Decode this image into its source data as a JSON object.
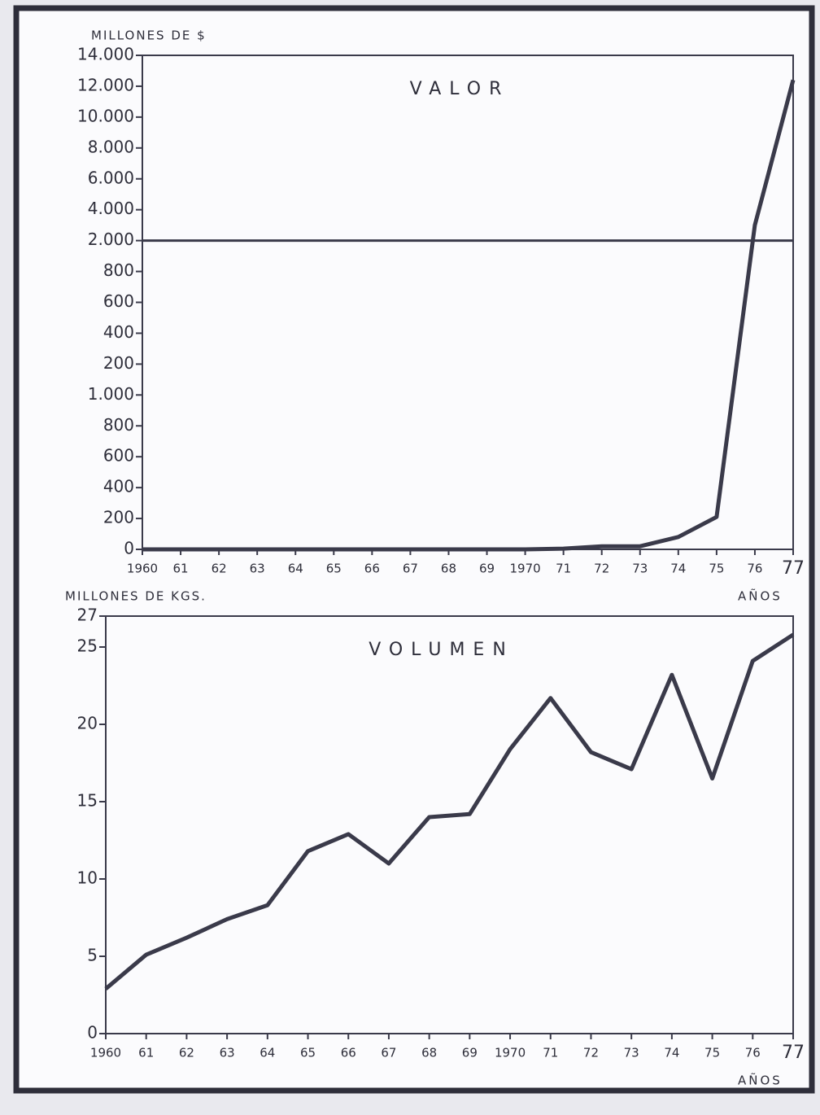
{
  "chart_data": [
    {
      "type": "line",
      "title": "VALOR",
      "y_label": "MILLONES DE $",
      "x_label": "AÑOS",
      "categories": [
        "1960",
        "61",
        "62",
        "63",
        "64",
        "65",
        "66",
        "67",
        "68",
        "69",
        "1970",
        "71",
        "72",
        "73",
        "74",
        "75",
        "76",
        "77"
      ],
      "values": [
        0,
        0,
        0,
        0,
        0,
        0,
        0,
        0,
        0,
        0,
        0,
        5,
        20,
        20,
        80,
        210,
        3000,
        12400
      ],
      "color": "#3a3a4a",
      "scale": "broken",
      "ylim": [
        0,
        14000
      ],
      "yticks": [
        0,
        200,
        400,
        600,
        800,
        {
          "value": 1000,
          "label": "1.000"
        },
        {
          "value": 1200,
          "label": "200"
        },
        {
          "value": 1400,
          "label": "400"
        },
        {
          "value": 1600,
          "label": "600"
        },
        {
          "value": 1800,
          "label": "800"
        },
        {
          "value": 2000,
          "label": "2.000"
        },
        {
          "value": 4000,
          "label": "4.000"
        },
        {
          "value": 6000,
          "label": "6.000"
        },
        {
          "value": 8000,
          "label": "8.000"
        },
        {
          "value": 10000,
          "label": "10.000"
        },
        {
          "value": 12000,
          "label": "12.000"
        },
        {
          "value": 14000,
          "label": "14.000"
        }
      ]
    },
    {
      "type": "line",
      "title": "VOLUMEN",
      "y_label": "MILLONES DE KGS.",
      "x_label": "AÑOS",
      "categories": [
        "1960",
        "61",
        "62",
        "63",
        "64",
        "65",
        "66",
        "67",
        "68",
        "69",
        "1970",
        "71",
        "72",
        "73",
        "74",
        "75",
        "76",
        "77"
      ],
      "values": [
        2.9,
        5.1,
        6.2,
        7.4,
        8.3,
        11.8,
        12.9,
        11,
        14,
        14.2,
        18.4,
        21.7,
        18.2,
        17.1,
        23.2,
        16.5,
        24.1,
        25.8
      ],
      "color": "#3a3a4a",
      "ylim": [
        0,
        27
      ],
      "yticks": [
        0,
        5,
        10,
        15,
        20,
        25,
        27
      ]
    }
  ]
}
